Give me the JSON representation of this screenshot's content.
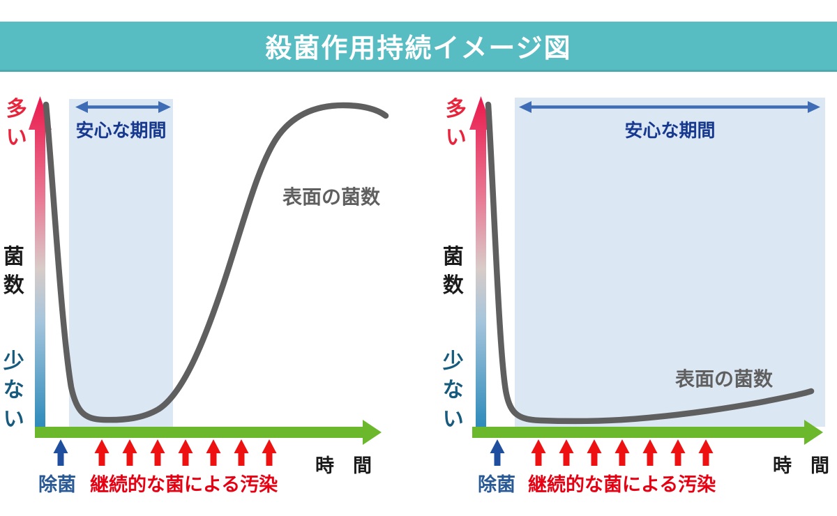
{
  "header": {
    "title": "殺菌作用持続イメージ図"
  },
  "colors": {
    "teal_header": "#57BDC2",
    "title_text": "#FFFFFF",
    "safe_region_bg": "#DCE7F4",
    "safe_arrow_blue": "#3E6CB5",
    "safe_label_navy": "#16388E",
    "curve_gray": "#5F5F5F",
    "axis_green": "#6CB82D",
    "red_arrow": "#EE1111",
    "contamination_red": "#E60012",
    "sanitize_blue": "#1F4E9E",
    "sanitize_label_navy": "#2A5A96",
    "y_top_red": "#E8243C",
    "y_label_black": "#1A1A1A",
    "y_bottom_teal": "#165A7D",
    "time_black": "#1A1A1A",
    "grad_top": "#EA1A4D",
    "grad_mid1": "#E87E98",
    "grad_mid2": "#D8CCC8",
    "grad_mid3": "#A5C5DC",
    "grad_bottom": "#2E8BBB"
  },
  "charts": [
    {
      "id": "short-duration",
      "y_axis": {
        "top_label": "多い",
        "axis_label": "菌数",
        "bottom_label": "少ない"
      },
      "x_axis": {
        "label": "時　間"
      },
      "safe_period_label": "安心な期間",
      "curve_label": "表面の菌数",
      "sanitize_label": "除菌",
      "contamination_label": "継続的な菌による汚染",
      "contamination_arrow_count": 7
    },
    {
      "id": "long-duration",
      "y_axis": {
        "top_label": "多い",
        "axis_label": "菌数",
        "bottom_label": "少ない"
      },
      "x_axis": {
        "label": "時　間"
      },
      "safe_period_label": "安心な期間",
      "curve_label": "表面の菌数",
      "sanitize_label": "除菌",
      "contamination_label": "継続的な菌による汚染",
      "contamination_arrow_count": 7
    }
  ]
}
